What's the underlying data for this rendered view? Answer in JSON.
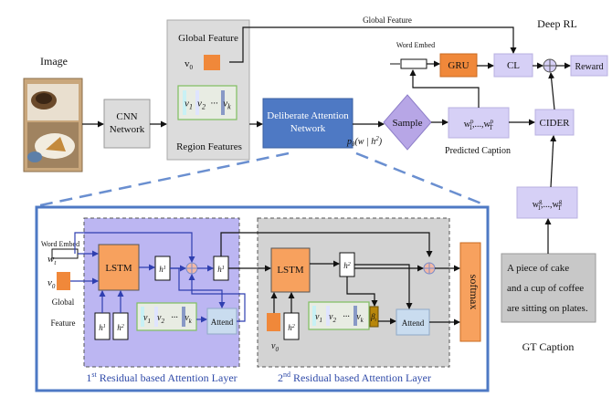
{
  "title": "",
  "colors": {
    "image_frame": "#8a6d4a",
    "cnn_box": "#dcdcdc",
    "global_feature_square": "#f0883a",
    "region_panel": "#e8ece3",
    "region_border": "#7fbf5f",
    "region_v1": "#c8f1f5",
    "region_v2": "#dfe4ff",
    "region_vk": "#8899c6",
    "deliberate_box": "#4e79c4",
    "sample_diamond": "#b7a6e6",
    "predicted_box": "#d6d0f6",
    "cider_box": "#d6d0f6",
    "gru_box": "#f0883a",
    "cl_box": "#d6d0f6",
    "reward_box": "#d6d0f6",
    "gt_word_box": "#d6d0f6",
    "gt_caption_box": "#c8c8c8",
    "outer_panel_border": "#4e79c4",
    "dashed_callout": "#6a8fd0",
    "layer1_bg": "#bcb6f2",
    "layer2_bg": "#d3d3d3",
    "lstm_box": "#f7a15e",
    "attend_box": "#c9dcef",
    "softmax_box": "#f7a15e",
    "plus_circle": "#f2b9a6",
    "gate_box": "#b8860b",
    "layer_label": "#2f4aa8"
  },
  "top": {
    "image_label": "Image",
    "cnn_label": "CNN Network",
    "global_feature_title": "Global Feature",
    "v0": "v",
    "v0_sub": "0",
    "region_items": [
      {
        "sym": "v",
        "sub": "1"
      },
      {
        "sym": "v",
        "sub": "2"
      },
      {
        "sym": "···",
        "sub": ""
      },
      {
        "sym": "v",
        "sub": "k"
      }
    ],
    "region_features_label": "Region Features",
    "deliberate_label": "Deliberate Attention Network",
    "prob_label": "p",
    "prob_sub": "θ",
    "prob_args": "(w | h",
    "prob_sup": "2",
    "prob_close": ")",
    "sample_label": "Sample",
    "predicted_seq": "w",
    "predicted_seq_sub1": "1",
    "predicted_seq_sup": "p",
    "predicted_seq_mid": ",...,w",
    "predicted_seq_subT": "T",
    "predicted_caption_label": "Predicted Caption",
    "global_feature_arrow_label": "Global Feature",
    "word_embed_label": "Word Embed",
    "gru_label": "GRU",
    "cl_label": "CL",
    "deep_rl_label": "Deep RL",
    "reward_label": "Reward",
    "cider_label": "CIDER",
    "gt_seq_sup": "g",
    "gt_caption_text": "A piece of cake and a cup of coffee are sitting on plates.",
    "gt_caption_label": "GT Caption"
  },
  "bottom": {
    "word_embed_label": "Word Embed",
    "w_t": "w",
    "w_t_sub": "t",
    "v0": "v",
    "v0_sub": "0",
    "global_feature_label": "Global Feature",
    "lstm_label": "LSTM",
    "h1_sym": "h",
    "h1_sup": "1",
    "h1_sub": "t",
    "h1_prev_sub": "t-1",
    "h2_sym": "h",
    "h2_sup": "2",
    "h2_sub": "t",
    "attend_label": "Attend",
    "region_items": [
      {
        "sym": "v",
        "sub": "1"
      },
      {
        "sym": "v",
        "sub": "2"
      },
      {
        "sym": "···",
        "sub": ""
      },
      {
        "sym": "v",
        "sub": "k"
      }
    ],
    "gate_sym": "β",
    "gate_sub": "t",
    "softmax_label": "softmax",
    "layer1_ord": "1",
    "layer1_sup": "st",
    "layer1_text": " Residual based Attention Layer",
    "layer2_ord": "2",
    "layer2_sup": "nd",
    "layer2_text": " Residual based Attention Layer"
  }
}
